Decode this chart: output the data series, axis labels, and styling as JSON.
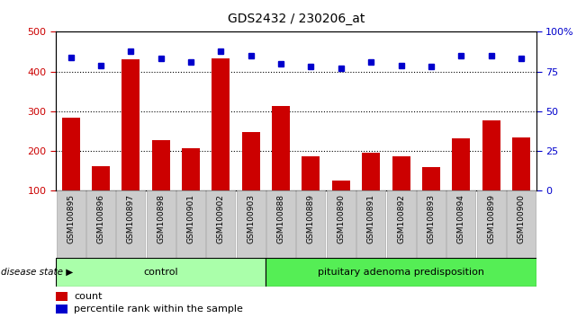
{
  "title": "GDS2432 / 230206_at",
  "categories": [
    "GSM100895",
    "GSM100896",
    "GSM100897",
    "GSM100898",
    "GSM100901",
    "GSM100902",
    "GSM100903",
    "GSM100888",
    "GSM100889",
    "GSM100890",
    "GSM100891",
    "GSM100892",
    "GSM100893",
    "GSM100894",
    "GSM100899",
    "GSM100900"
  ],
  "bar_values": [
    285,
    162,
    430,
    227,
    206,
    432,
    248,
    314,
    186,
    126,
    195,
    186,
    160,
    232,
    278,
    234
  ],
  "percentile_values": [
    84,
    79,
    88,
    83,
    81,
    88,
    85,
    80,
    78,
    77,
    81,
    79,
    78,
    85,
    85,
    83
  ],
  "ylim_left": [
    100,
    500
  ],
  "ylim_right": [
    0,
    100
  ],
  "yticks_left": [
    100,
    200,
    300,
    400,
    500
  ],
  "yticks_right": [
    0,
    25,
    50,
    75,
    100
  ],
  "ytick_right_labels": [
    "0",
    "25",
    "50",
    "75",
    "100%"
  ],
  "bar_color": "#cc0000",
  "dot_color": "#0000cc",
  "grid_lines": [
    200,
    300,
    400
  ],
  "control_count": 7,
  "disease_count": 9,
  "control_label": "control",
  "disease_label": "pituitary adenoma predisposition",
  "disease_state_label": "disease state",
  "legend_count_label": "count",
  "legend_pct_label": "percentile rank within the sample",
  "bar_width": 0.6,
  "control_bg": "#aaffaa",
  "disease_bg": "#55ee55",
  "tick_bg": "#cccccc",
  "tick_border": "#aaaaaa"
}
